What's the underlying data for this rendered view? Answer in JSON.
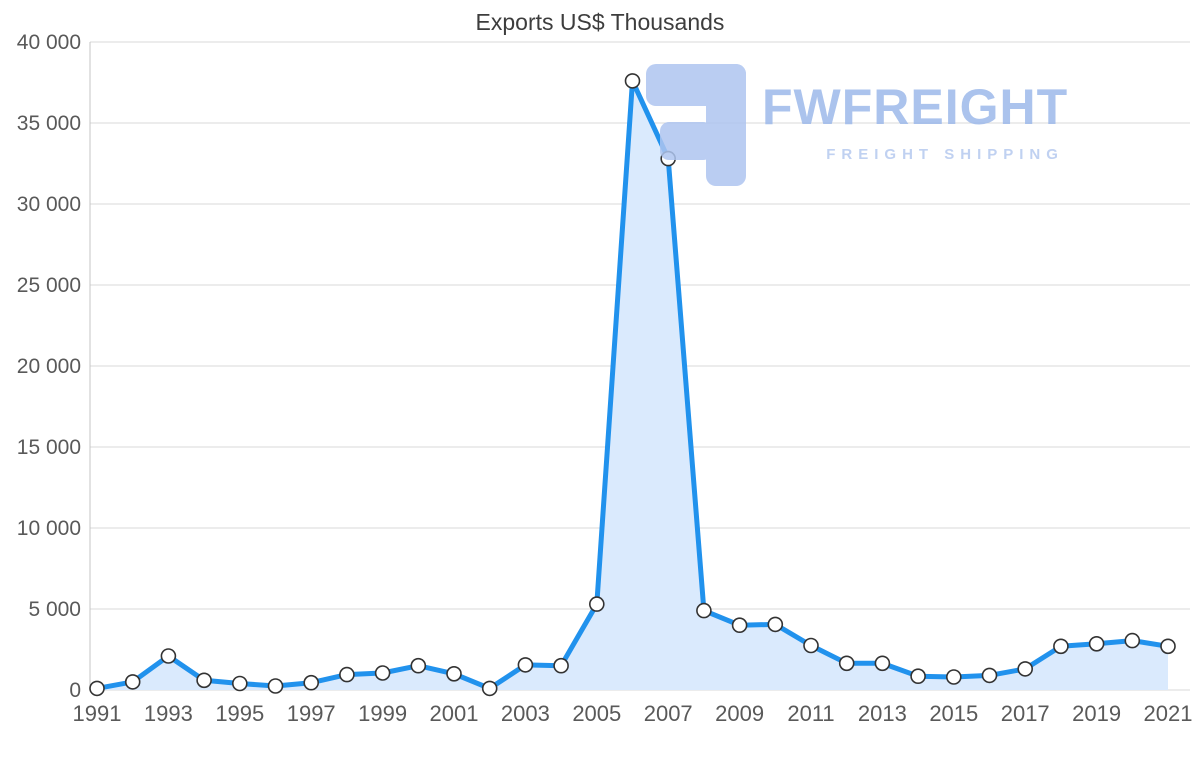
{
  "chart_data": {
    "type": "area",
    "title": "Exports US$ Thousands",
    "x": [
      1991,
      1992,
      1993,
      1994,
      1995,
      1996,
      1997,
      1998,
      1999,
      2000,
      2001,
      2002,
      2003,
      2004,
      2005,
      2006,
      2007,
      2008,
      2009,
      2010,
      2011,
      2012,
      2013,
      2014,
      2015,
      2016,
      2017,
      2018,
      2019,
      2020,
      2021
    ],
    "series": [
      {
        "name": "Exports US$ Thousands",
        "values": [
          100,
          500,
          2100,
          600,
          400,
          250,
          450,
          950,
          1050,
          1500,
          1000,
          100,
          1550,
          1500,
          5300,
          37600,
          32800,
          4900,
          4000,
          4050,
          2750,
          1650,
          1650,
          850,
          800,
          900,
          1300,
          2700,
          2850,
          3050,
          2700
        ]
      }
    ],
    "ylim": [
      0,
      40000
    ],
    "ytick_step": 5000,
    "xtick_labels": [
      "1991",
      "1993",
      "1995",
      "1997",
      "1999",
      "2001",
      "2003",
      "2005",
      "2007",
      "2009",
      "2011",
      "2013",
      "2015",
      "2017",
      "2019",
      "2021"
    ],
    "grid": true,
    "legend_position": "none",
    "xlabel": "",
    "ylabel": "",
    "colors": {
      "line": "#2192ed",
      "fill": "#daeafd",
      "grid": "#d9d9d9",
      "axis": "#c4c4c4",
      "tick_text": "#595959",
      "title_text": "#3d3d3d",
      "marker_fill": "#ffffff",
      "marker_stroke": "#333333"
    }
  },
  "watermark": {
    "brand": "FWFREIGHT",
    "tagline": "FREIGHT SHIPPING",
    "brand_color": "#9db9ea",
    "logo_color": "#aec5f0"
  }
}
